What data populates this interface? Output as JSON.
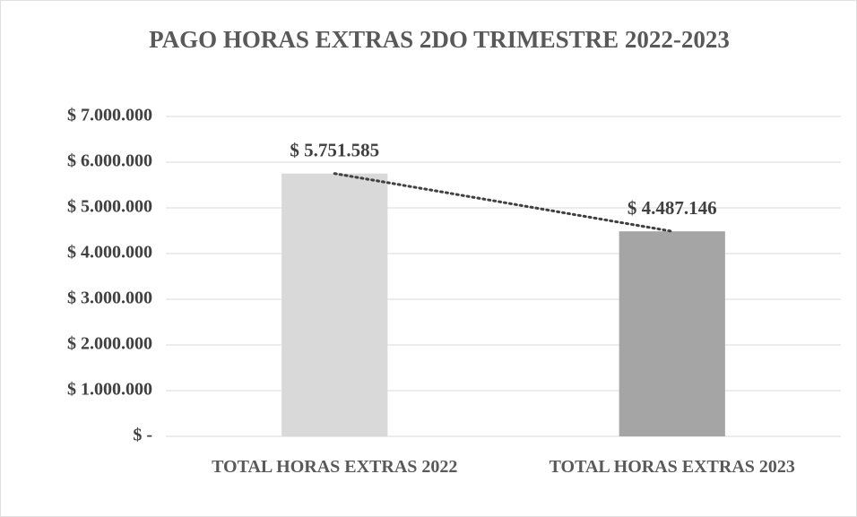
{
  "chart_data": {
    "type": "bar",
    "title": "PAGO HORAS EXTRAS  2DO TRIMESTRE 2022-2023",
    "categories": [
      "TOTAL HORAS EXTRAS 2022",
      "TOTAL HORAS EXTRAS 2023"
    ],
    "values": [
      5751585,
      4487146
    ],
    "value_labels": [
      "$ 5.751.585",
      "$ 4.487.146"
    ],
    "colors": [
      "#d9d9d9",
      "#a5a5a5"
    ],
    "ylim": [
      0,
      7000000
    ],
    "yticks": [
      {
        "value": 0,
        "label": "$ -"
      },
      {
        "value": 1000000,
        "label": "$ 1.000.000"
      },
      {
        "value": 2000000,
        "label": "$ 2.000.000"
      },
      {
        "value": 3000000,
        "label": "$ 3.000.000"
      },
      {
        "value": 4000000,
        "label": "$ 4.000.000"
      },
      {
        "value": 5000000,
        "label": "$ 5.000.000"
      },
      {
        "value": 6000000,
        "label": "$ 6.000.000"
      },
      {
        "value": 7000000,
        "label": "$ 7.000.000"
      }
    ],
    "grid": true,
    "trendline": true
  }
}
